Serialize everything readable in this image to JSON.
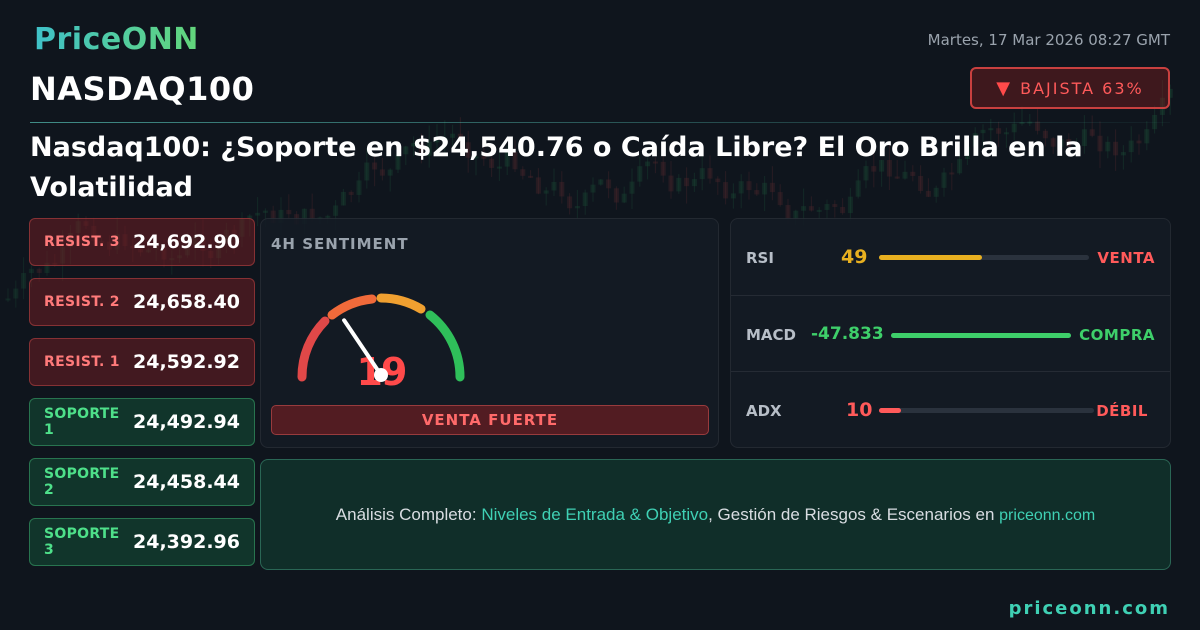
{
  "brand": {
    "logo": "PriceONN"
  },
  "header": {
    "datetime": "Martes, 17 Mar 2026 08:27 GMT",
    "symbol": "NASDAQ100",
    "trend_label": "BAJISTA 63%",
    "trend_arrow": "▼"
  },
  "headline": "Nasdaq100: ¿Soporte en $24,540.76 o Caída Libre? El Oro Brilla en la Volatilidad",
  "levels": [
    {
      "label": "RESIST. 3",
      "value": "24,692.90",
      "kind": "resistance"
    },
    {
      "label": "RESIST. 2",
      "value": "24,658.40",
      "kind": "resistance"
    },
    {
      "label": "RESIST. 1",
      "value": "24,592.92",
      "kind": "resistance"
    },
    {
      "label": "SOPORTE 1",
      "value": "24,492.94",
      "kind": "support"
    },
    {
      "label": "SOPORTE 2",
      "value": "24,458.44",
      "kind": "support"
    },
    {
      "label": "SOPORTE 3",
      "value": "24,392.96",
      "kind": "support"
    }
  ],
  "sentiment": {
    "title": "4H SENTIMENT",
    "score": "19",
    "score_value": 19,
    "label": "VENTA FUERTE"
  },
  "indicators": [
    {
      "name": "RSI",
      "value": "49",
      "level": 0.49,
      "signal": "VENTA",
      "value_color": "#e8b020",
      "bar_color": "#e8b020",
      "signal_color": "#ff5a5a"
    },
    {
      "name": "MACD",
      "value": "-47.833",
      "level": 1.0,
      "signal": "COMPRA",
      "value_color": "#3ecf6a",
      "bar_color": "#3ecf6a",
      "signal_color": "#3ecf6a"
    },
    {
      "name": "ADX",
      "value": "10",
      "level": 0.1,
      "signal": "DÉBIL",
      "value_color": "#ff5a5a",
      "bar_color": "#ff5a5a",
      "signal_color": "#ff5a5a"
    }
  ],
  "cta": {
    "prefix": "Análisis Completo: ",
    "highlight": "Niveles de Entrada & Objetivo",
    "middle": ", Gestión de Riesgos & Escenarios en ",
    "site": "priceonn.com"
  },
  "footer": {
    "site": "priceonn.com"
  },
  "colors": {
    "accent": "#3fd0b4",
    "bearish": "#ff5a5a",
    "bullish": "#3ecf6a"
  }
}
